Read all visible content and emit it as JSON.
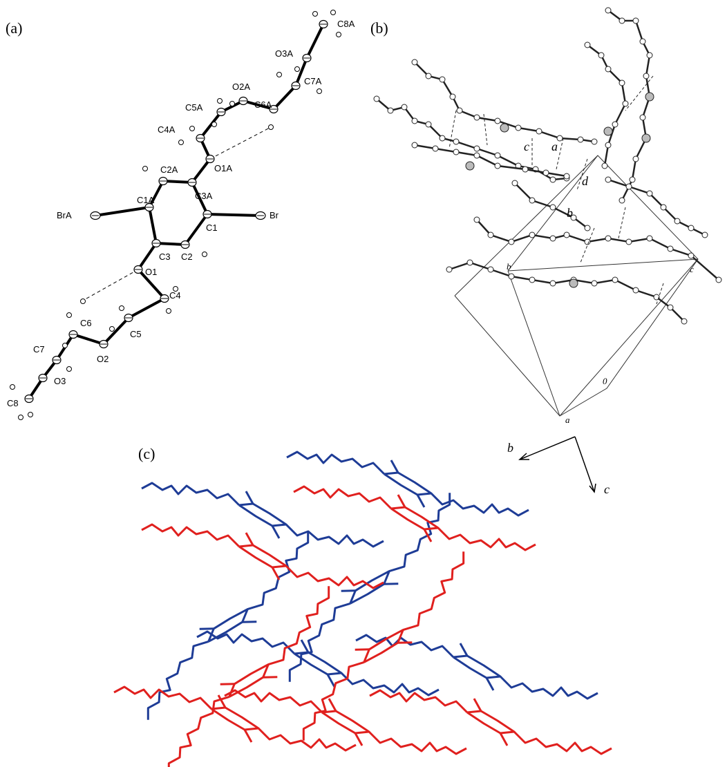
{
  "panels": [
    {
      "label": "(a)",
      "atoms": [
        "C8A",
        "O3A",
        "C7A",
        "O2A",
        "C6A",
        "C5A",
        "C4A",
        "O1A",
        "C2A",
        "C3A",
        "C1A",
        "BrA",
        "C1",
        "Br",
        "C3",
        "C2",
        "O1",
        "C6",
        "C4",
        "C5",
        "C7",
        "O2",
        "O3",
        "C8"
      ]
    },
    {
      "label": "(b)",
      "contacts": [
        "c",
        "a",
        "d",
        "b"
      ],
      "cell_axes": [
        "b",
        "c",
        "0",
        "a"
      ]
    },
    {
      "label": "(c)",
      "axes": [
        "b",
        "c"
      ]
    }
  ]
}
